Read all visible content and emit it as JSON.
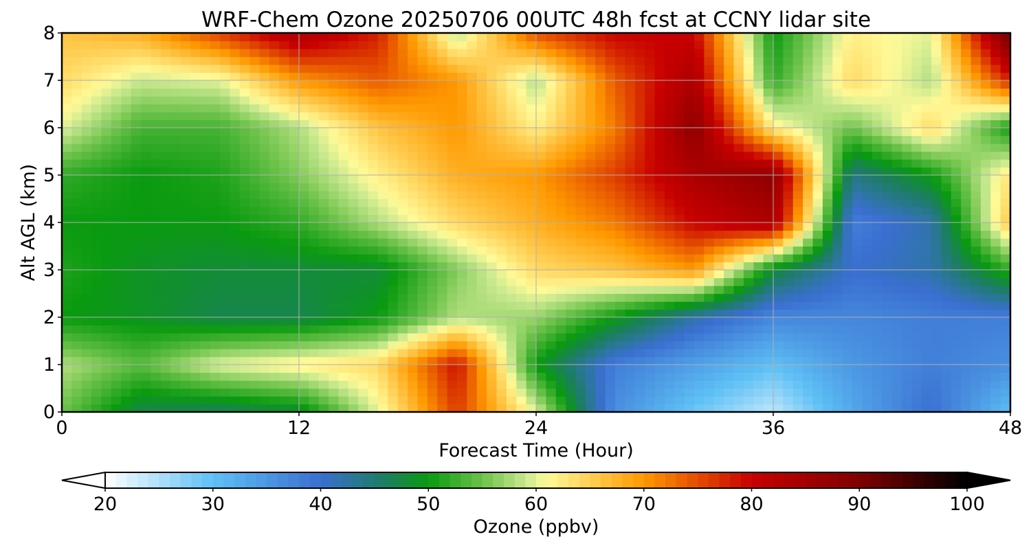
{
  "chart_data": {
    "type": "heatmap",
    "title": "WRF-Chem Ozone  20250706 00UTC 48h fcst at CCNY lidar site",
    "xlabel": "Forecast Time (Hour)",
    "ylabel": "Alt AGL (km)",
    "xlim": [
      0,
      48
    ],
    "ylim": [
      0,
      8
    ],
    "xticks": [
      0,
      12,
      24,
      36,
      48
    ],
    "yticks": [
      0,
      1,
      2,
      3,
      4,
      5,
      6,
      7,
      8
    ],
    "grid": true,
    "x": [
      0,
      4,
      8,
      12,
      16,
      20,
      24,
      28,
      32,
      36,
      40,
      44,
      48
    ],
    "y": [
      0,
      1,
      2,
      3,
      4,
      5,
      6,
      7,
      8
    ],
    "z": [
      [
        55,
        47,
        46,
        48,
        60,
        76,
        60,
        36,
        29,
        24,
        33,
        40,
        30
      ],
      [
        58,
        54,
        60,
        62,
        64,
        79,
        50,
        38,
        34,
        30,
        35,
        38,
        36
      ],
      [
        50,
        49,
        47,
        47,
        50,
        58,
        57,
        50,
        42,
        37,
        37,
        38,
        38
      ],
      [
        51,
        49,
        48,
        48,
        48,
        56,
        64,
        66,
        70,
        48,
        40,
        42,
        52
      ],
      [
        50,
        50,
        50,
        52,
        58,
        64,
        68,
        72,
        80,
        84,
        38,
        42,
        66
      ],
      [
        52,
        50,
        51,
        56,
        62,
        68,
        70,
        76,
        84,
        88,
        44,
        50,
        63
      ],
      [
        60,
        53,
        53,
        58,
        66,
        70,
        62,
        72,
        88,
        62,
        55,
        64,
        50
      ],
      [
        64,
        59,
        60,
        70,
        74,
        70,
        58,
        74,
        84,
        52,
        64,
        58,
        78
      ],
      [
        66,
        68,
        76,
        84,
        78,
        58,
        75,
        80,
        80,
        50,
        62,
        60,
        92
      ]
    ],
    "colorbar": {
      "label": "Ozone  (ppbv)",
      "ticks": [
        20,
        30,
        40,
        50,
        60,
        70,
        80,
        90,
        100
      ],
      "range": [
        20,
        100
      ],
      "extend": "both",
      "anchors": [
        {
          "v": 20,
          "c": "#ffffff"
        },
        {
          "v": 30,
          "c": "#5ec0f5"
        },
        {
          "v": 40,
          "c": "#3a6fd1"
        },
        {
          "v": 46,
          "c": "#1b7e60"
        },
        {
          "v": 50,
          "c": "#0a9a10"
        },
        {
          "v": 55,
          "c": "#6cc24a"
        },
        {
          "v": 59,
          "c": "#c8e88e"
        },
        {
          "v": 61,
          "c": "#fffa98"
        },
        {
          "v": 70,
          "c": "#ff9900"
        },
        {
          "v": 80,
          "c": "#c80000"
        },
        {
          "v": 90,
          "c": "#800000"
        },
        {
          "v": 100,
          "c": "#000000"
        }
      ]
    }
  }
}
